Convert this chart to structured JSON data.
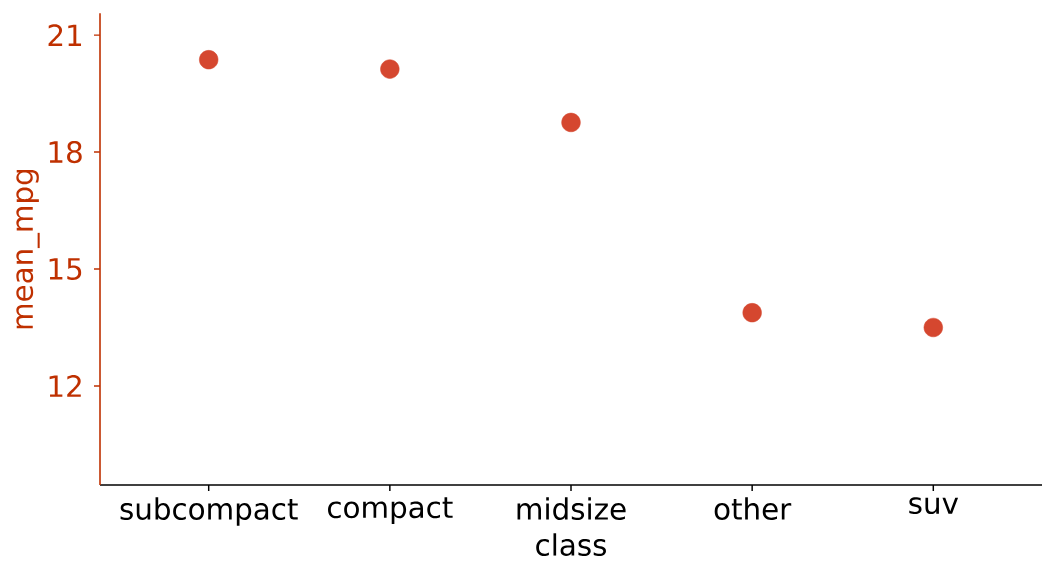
{
  "chart_data": {
    "type": "scatter",
    "xlabel": "class",
    "ylabel": "mean_mpg",
    "categories": [
      "subcompact",
      "compact",
      "midsize",
      "other",
      "suv"
    ],
    "values": [
      20.37,
      20.13,
      18.76,
      13.88,
      13.5
    ],
    "color": "#d5472f",
    "ylim": [
      9.46,
      21.56
    ],
    "yticks": [
      12,
      15,
      18,
      21
    ],
    "marker": "circle"
  }
}
